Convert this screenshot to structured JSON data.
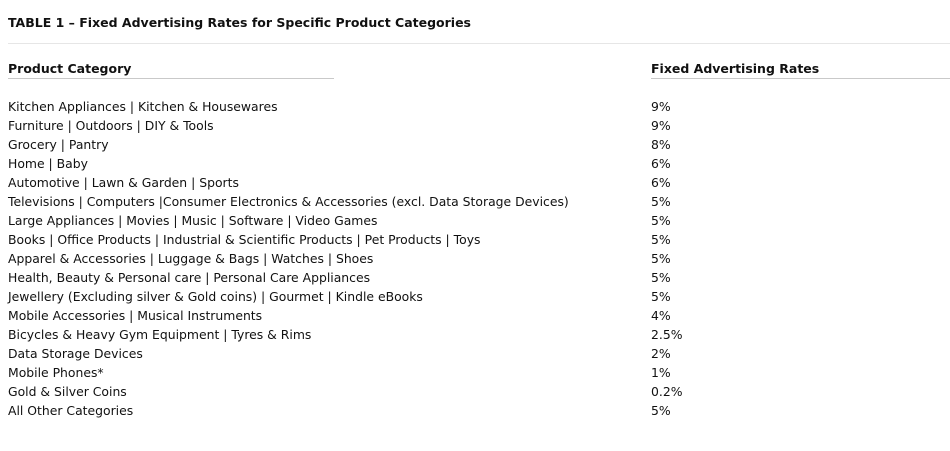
{
  "table": {
    "title": "TABLE 1 – Fixed Advertising Rates for Specific Product Categories",
    "headers": {
      "category": "Product Category",
      "rate": "Fixed Advertising Rates"
    },
    "rows": [
      {
        "category": "Kitchen Appliances | Kitchen & Housewares",
        "rate": "9%"
      },
      {
        "category": "Furniture | Outdoors | DIY & Tools",
        "rate": "9%"
      },
      {
        "category": "Grocery | Pantry",
        "rate": "8%"
      },
      {
        "category": "Home | Baby",
        "rate": "6%"
      },
      {
        "category": "Automotive | Lawn & Garden | Sports",
        "rate": "6%"
      },
      {
        "category": "Televisions | Computers |Consumer Electronics & Accessories (excl. Data Storage Devices)",
        "rate": "5%"
      },
      {
        "category": "Large Appliances | Movies | Music | Software | Video Games",
        "rate": "5%"
      },
      {
        "category": "Books | Office Products | Industrial & Scientific Products | Pet Products | Toys",
        "rate": "5%"
      },
      {
        "category": "Apparel & Accessories | Luggage & Bags | Watches | Shoes",
        "rate": "5%"
      },
      {
        "category": "Health, Beauty & Personal care | Personal Care Appliances",
        "rate": "5%"
      },
      {
        "category": "Jewellery (Excluding silver & Gold coins) | Gourmet | Kindle eBooks",
        "rate": "5%"
      },
      {
        "category": "Mobile Accessories | Musical Instruments",
        "rate": "4%"
      },
      {
        "category": "Bicycles & Heavy Gym Equipment | Tyres & Rims",
        "rate": "2.5%"
      },
      {
        "category": "Data Storage Devices",
        "rate": "2%"
      },
      {
        "category": "Mobile Phones*",
        "rate": "1%"
      },
      {
        "category": "Gold & Silver Coins",
        "rate": "0.2%"
      },
      {
        "category": "All Other Categories",
        "rate": "5%"
      }
    ]
  }
}
